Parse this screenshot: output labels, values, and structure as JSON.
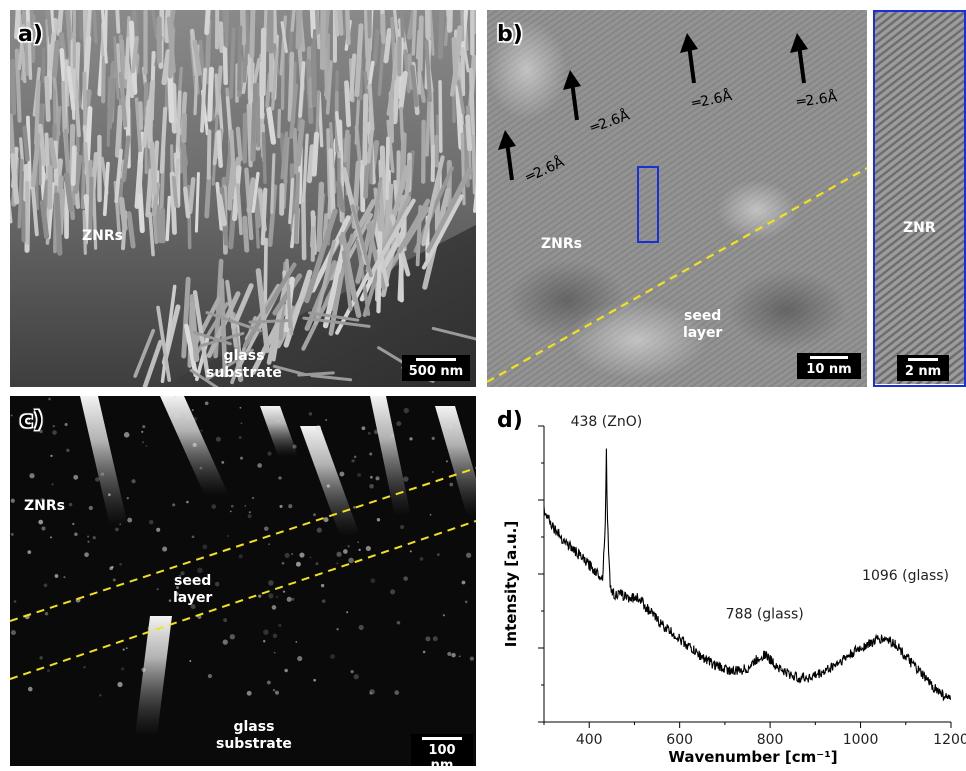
{
  "figure": {
    "panel_a": {
      "label": "a)",
      "znr_label": "ZNRs",
      "substrate_label": "glass\nsubstrate",
      "scalebar": "500 nm"
    },
    "panel_b": {
      "label": "b)",
      "lattice_labels": [
        "2.6Å",
        "2.6Å",
        "2.6Å",
        "2.6Å"
      ],
      "znr_label": "ZNRs",
      "seed_label": "seed\nlayer",
      "scalebar": "10 nm",
      "inset_label": "ZNR",
      "inset_scalebar": "2 nm",
      "inset_border_color": "#1a2fd6",
      "boundary_color": "#f2e21a"
    },
    "panel_c": {
      "label": "c)",
      "znr_label": "ZNRs",
      "seed_label": "seed\nlayer",
      "substrate_label": "glass\nsubstrate",
      "scalebar": "100 nm",
      "boundary_color": "#f2e21a"
    },
    "panel_d": {
      "label": "d)"
    }
  },
  "chart_data": {
    "type": "line",
    "xlabel": "Wavenumber [cm⁻¹]",
    "ylabel": "Intensity [a.u.]",
    "xlim": [
      300,
      1200
    ],
    "xticks": [
      "400",
      "600",
      "800",
      "1000",
      "1200"
    ],
    "yticks_labeled": false,
    "annotations": [
      {
        "text": "438 (ZnO)",
        "x": 438
      },
      {
        "text": "788 (glass)",
        "x": 788
      },
      {
        "text": "1096 (glass)",
        "x": 1096
      }
    ],
    "series": [
      {
        "values_relative": true,
        "x": [
          300,
          320,
          340,
          360,
          380,
          400,
          420,
          430,
          436,
          438,
          440,
          446,
          455,
          470,
          490,
          510,
          530,
          560,
          600,
          640,
          680,
          720,
          750,
          770,
          788,
          800,
          830,
          860,
          890,
          920,
          960,
          1000,
          1040,
          1060,
          1080,
          1100,
          1130,
          1160,
          1200
        ],
        "y": [
          0.72,
          0.66,
          0.62,
          0.59,
          0.56,
          0.53,
          0.5,
          0.49,
          0.7,
          0.93,
          0.7,
          0.46,
          0.43,
          0.43,
          0.42,
          0.42,
          0.38,
          0.33,
          0.28,
          0.23,
          0.19,
          0.17,
          0.18,
          0.21,
          0.23,
          0.21,
          0.17,
          0.15,
          0.15,
          0.17,
          0.21,
          0.25,
          0.28,
          0.28,
          0.26,
          0.22,
          0.17,
          0.12,
          0.07
        ]
      }
    ]
  }
}
